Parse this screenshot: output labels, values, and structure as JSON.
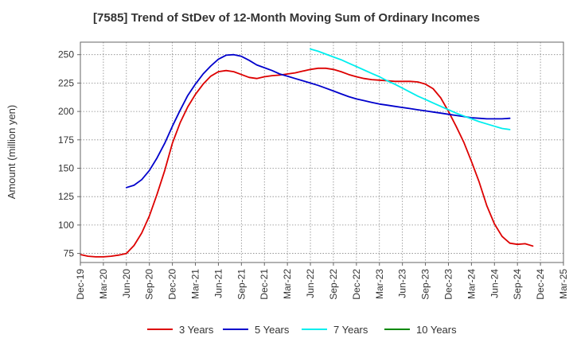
{
  "chart_data": {
    "type": "line",
    "title": "[7585]  Trend of StDev of 12-Month Moving Sum of Ordinary Incomes",
    "ylabel": "Amount (million yen)",
    "xlabel": "",
    "ylim": [
      67,
      261
    ],
    "yticks": [
      75,
      100,
      125,
      150,
      175,
      200,
      225,
      250
    ],
    "xticks": [
      "Dec-19",
      "Mar-20",
      "Jun-20",
      "Sep-20",
      "Dec-20",
      "Mar-21",
      "Jun-21",
      "Sep-21",
      "Dec-21",
      "Mar-22",
      "Jun-22",
      "Sep-22",
      "Dec-22",
      "Mar-23",
      "Jun-23",
      "Sep-23",
      "Dec-23",
      "Mar-24",
      "Jun-24",
      "Sep-24",
      "Dec-24",
      "Mar-25"
    ],
    "grid": true,
    "legend_position": "bottom",
    "series": [
      {
        "name": "3 Years",
        "color": "#dd0000",
        "start_index": 0,
        "values": [
          74,
          72.5,
          72,
          72,
          72.5,
          73.5,
          75,
          82,
          93,
          108,
          127,
          148,
          172,
          190,
          204,
          215,
          224,
          231,
          235,
          236,
          235,
          232.5,
          230,
          229,
          230.5,
          231.5,
          232,
          233,
          234,
          235.5,
          237,
          238,
          238,
          237,
          235,
          232.5,
          230.5,
          229,
          228,
          227.5,
          227,
          226.5,
          226.5,
          226.5,
          226,
          224,
          220,
          212,
          200,
          187,
          173,
          156,
          138,
          117,
          101,
          90,
          84,
          83,
          83.5,
          81.5
        ]
      },
      {
        "name": "5 Years",
        "color": "#0000cc",
        "start_index": 6,
        "values": [
          133,
          135,
          140,
          148,
          159,
          172,
          187,
          201,
          214,
          224,
          233,
          240,
          246,
          249.5,
          250,
          248.5,
          245,
          241,
          238.5,
          236,
          233,
          231,
          229,
          227,
          225,
          223,
          220.5,
          218,
          215.5,
          213,
          211,
          209.5,
          208,
          206.5,
          205.5,
          204.5,
          203.5,
          202.5,
          201.5,
          200.5,
          199.5,
          198.5,
          197.5,
          196.5,
          195.5,
          194.5,
          194,
          193.5,
          193.5,
          193.5,
          194
        ]
      },
      {
        "name": "7 Years",
        "color": "#00eeee",
        "start_index": 30,
        "values": [
          255,
          253,
          250.5,
          248,
          245.5,
          242.5,
          239.5,
          236.5,
          233.5,
          230.5,
          227,
          224,
          220.5,
          217,
          213.5,
          210.5,
          207.5,
          204.5,
          201.5,
          198.5,
          196,
          193.5,
          191,
          189,
          187,
          185,
          184
        ]
      },
      {
        "name": "10 Years",
        "color": "#008800",
        "start_index": 0,
        "values": []
      }
    ]
  }
}
